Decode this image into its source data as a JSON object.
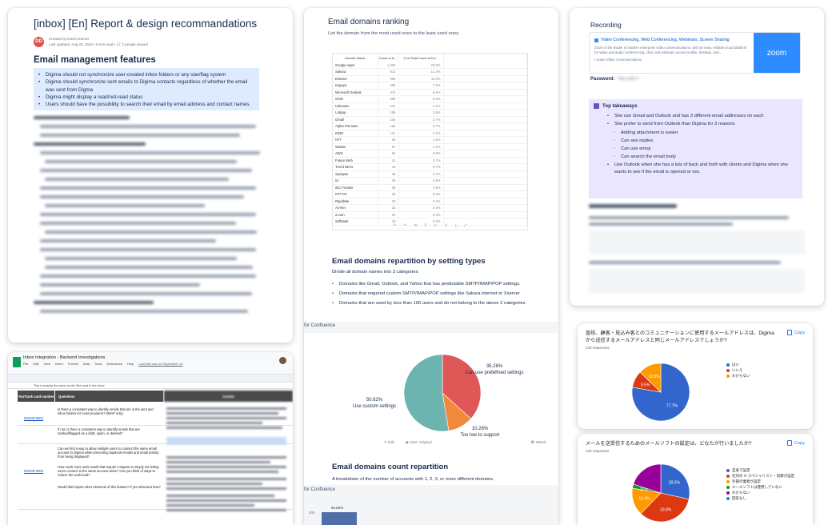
{
  "report": {
    "title": "[inbox] [En] Report & design recommandations",
    "avatar_initials": "DD",
    "created_by": "Created by David Gamez",
    "last_updated": "Last updated: Aug 29, 2022 • 8 min read • 📈 2 people viewed",
    "section_title": "Email management features",
    "bullets": [
      "Digima should not synchronize user-created inbox folders or any star/flag system",
      "Digima should synchronize sent emails to Digima contacts regardless of whether the email was sent from Digma",
      "Digima might display a read/not-read status",
      "Users should have the possibility to search their email by email address and contact names."
    ]
  },
  "domains": {
    "heading": "Email domains ranking",
    "subheading": "List the domain from the most used ones to the least used ones.",
    "table_headers": [
      "Domain Name",
      "Count of D...",
      "% of Total Count of Do..."
    ],
    "rows": [
      [
        "Google Apps",
        "1,303",
        "23.0%"
      ],
      [
        "Sakura",
        "812",
        "14.3%"
      ],
      [
        "Elsevier",
        "668",
        "11.8%"
      ],
      [
        "Kagoya",
        "409",
        "7.2%"
      ],
      [
        "Microsoft Outlook",
        "372",
        "6.6%"
      ],
      [
        "GMO",
        "355",
        "6.3%"
      ],
      [
        "Unknown",
        "231",
        "4.1%"
      ],
      [
        "Lolipop",
        "159",
        "2.8%"
      ],
      [
        "Gmail",
        "154",
        "2.7%"
      ],
      [
        "Alpha Premium",
        "152",
        "2.7%"
      ],
      [
        "KDDI",
        "121",
        "2.1%"
      ],
      [
        "NTT",
        "90",
        "1.6%"
      ],
      [
        "Wadax",
        "67",
        "1.2%"
      ],
      [
        "AWS",
        "51",
        "0.9%"
      ],
      [
        "Future Web",
        "41",
        "0.7%"
      ],
      [
        "Trend Micro",
        "40",
        "0.7%"
      ],
      [
        "Synapse",
        "38",
        "0.7%"
      ],
      [
        "IIJ",
        "30",
        "0.5%"
      ],
      [
        "IDC Frontier",
        "29",
        "0.5%"
      ],
      [
        "NTT PC",
        "25",
        "0.4%"
      ],
      [
        "Rapidsite",
        "23",
        "0.4%"
      ],
      [
        "Ax-Net",
        "22",
        "0.4%"
      ],
      [
        "Z.com",
        "22",
        "0.4%"
      ],
      [
        "Softbank",
        "18",
        "0.3%"
      ]
    ],
    "repartition_heading": "Email domains repartition by setting types",
    "repartition_sub": "Divide all domain names into 3 categories:",
    "repartition_bullets": [
      "Domains like Gmail, Outlook, and Yahoo that has predictable SMTP/IMAP/POP settings.",
      "Domains that required custom SMTP/IMAP/POP settings like Sakura internet or Xserver",
      "Domains that are used by less than 100 users and do not belong to the above 2 categories"
    ],
    "confluence_label": "for Confluence",
    "edit_label": "Edit",
    "view_label": "View: Original",
    "watch_label": "Watch",
    "count_heading": "Email domains count repartition",
    "count_sub": "A breakdown of the number of accounts with 1, 2, 3, or more different domains.",
    "count_axis_tick": "200",
    "count_bar_label": "62.84%"
  },
  "chart_data": [
    {
      "type": "pie",
      "title": "",
      "categories": [
        "Can use prefefined settings",
        "Too low to support",
        "Use custom settings"
      ],
      "values": [
        35.26,
        10.28,
        50.62
      ],
      "colors": [
        "#e05757",
        "#f08a3a",
        "#6cb4b0"
      ]
    },
    {
      "type": "pie",
      "title": "普段、顧客・見込み客とのコミュニケーションに使用するメールアドレスは、Digimaから送信するメールアドレスと同じメールアドレスでしょうか?",
      "categories": [
        "はい",
        "いいえ",
        "わからない"
      ],
      "values": [
        77.7,
        9.5,
        12.8
      ],
      "colors": [
        "#3366cc",
        "#dc3912",
        "#ff9900"
      ]
    },
    {
      "type": "pie",
      "title": "メールを送受信するためのメールソフトの設定は、どなたが行いましたか?",
      "categories": [
        "自身で設定",
        "社内の IT スペシャリスト・同僚が設定",
        "外部の業者が設定",
        "メールソフトは使用していない",
        "わからない",
        "回答なし"
      ],
      "values": [
        28.5,
        33.8,
        15.4,
        2.3,
        20,
        0
      ],
      "colors": [
        "#3366cc",
        "#dc3912",
        "#ff9900",
        "#109618",
        "#990099",
        "#0099c6"
      ]
    }
  ],
  "recording": {
    "title": "Recording",
    "zoom_link": "Video Conferencing, Web Conferencing, Webinars, Screen Sharing",
    "zoom_desc": "Zoom is the leader in modern enterprise video communications, with an easy, reliable cloud platform for video and audio conferencing, chat, and webinars across mobile, desktop, and...",
    "zoom_footer": "Zoom Video Communications",
    "zoom_logo": "zoom",
    "password_label": "Password:",
    "password_value": "•Nu.5W7•",
    "takeaways_title": "Top takeaways",
    "takeaways": [
      {
        "text": "She use Gmail and Outlook and has 3 different email addresses on each",
        "level": 1
      },
      {
        "text": "She prefer to send from Outlook than Digima for 3 reasons",
        "level": 1
      },
      {
        "text": "Adding attachment is easier",
        "level": 2
      },
      {
        "text": "Can see replies",
        "level": 2
      },
      {
        "text": "Can use emoji",
        "level": 2
      },
      {
        "text": "Can search the email body",
        "level": 2
      },
      {
        "text": "Use Outlook when she has a lots of back and forth with clients and Digima when she wants to see if the email is opened or not.",
        "level": 1
      }
    ]
  },
  "sheet": {
    "title": "Inbox Integration - Backend Investigations",
    "menu": [
      "File",
      "Edit",
      "View",
      "Insert",
      "Format",
      "Data",
      "Tools",
      "Extensions",
      "Help",
      "Last edit was on September 14"
    ],
    "formula": "This is exactly the same as the Sent and in the inbox",
    "col_headers": [
      "YouTrack card number",
      "Questions",
      "Answer"
    ],
    "rows": [
      {
        "link": "DIGMD-9804",
        "q1": "Is there a consistent way to identify emails that are in the sent and inbox folders for most providers? (IMAP only)",
        "q2": "If not, is there a consistent way to identify emails that are marked/flagged as a draft, spam, or deleted?"
      },
      {
        "link": "DIGMD-9805",
        "q1": "Can we find a way to allow multiple users to connect the same email account to Digima while preventing duplicate emails and email activity from being displayed?",
        "q2": "How much more work would that require compare to simply not letting users connect to the same account twice? Can you think of ways to reduce the work load?",
        "q3": "Would that impact other elements of this feature? If yes what and how?"
      }
    ]
  },
  "form1": {
    "question": "普段、顧客・見込み客とのコミュニケーションに使用するメールアドレスは、Digimaから送信するメールアドレスと同じメールアドレスでしょうか?",
    "responses": "130 responses",
    "copy": "Copy",
    "slice_labels": [
      "77.7%",
      "9.5%",
      "12.8%"
    ]
  },
  "form2": {
    "question": "メールを送受信するためのメールソフトの設定は、どなたが行いましたか?",
    "responses": "130 responses",
    "copy": "Copy",
    "slice_labels": [
      "28.5%",
      "33.8%",
      "15.4%",
      "20%"
    ]
  }
}
